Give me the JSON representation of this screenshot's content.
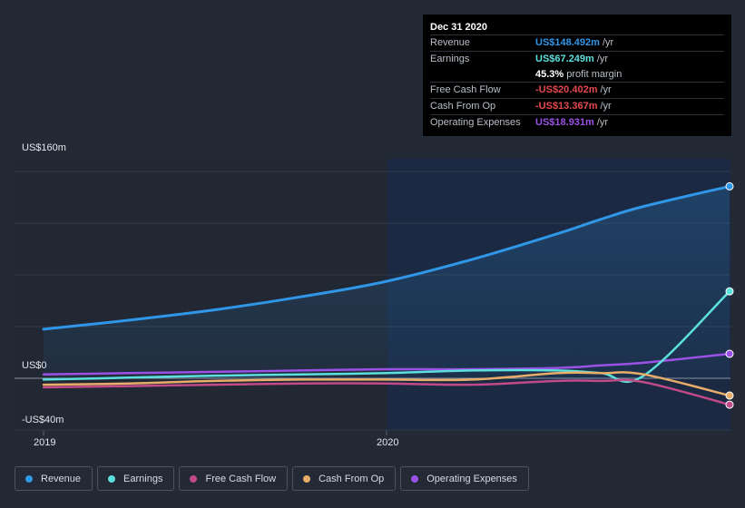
{
  "chart_data": {
    "type": "line",
    "x": [
      2019.0,
      2019.25,
      2019.5,
      2019.75,
      2020.0,
      2020.25,
      2020.5,
      2020.625,
      2020.75,
      2021.0
    ],
    "series": [
      {
        "name": "Revenue",
        "color": "#2f96e8",
        "values": [
          38,
          45,
          53,
          63,
          75,
          92,
          112,
          123,
          133,
          148.492
        ]
      },
      {
        "name": "Earnings",
        "color": "#5ce0dd",
        "values": [
          -1,
          0.5,
          2,
          3,
          4,
          6,
          6,
          4,
          2,
          67.249
        ]
      },
      {
        "name": "Free Cash Flow",
        "color": "#c24a89",
        "values": [
          -7,
          -6,
          -5,
          -4,
          -4,
          -5,
          -2,
          -2,
          -3,
          -20.402
        ]
      },
      {
        "name": "Cash From Op",
        "color": "#e9ad6a",
        "values": [
          -5,
          -4,
          -2,
          -1,
          -1,
          -1,
          4,
          4,
          3,
          -13.367
        ]
      },
      {
        "name": "Operating Expenses",
        "color": "#9b51e6",
        "values": [
          3,
          4,
          5,
          6,
          7,
          7,
          8,
          10,
          12,
          18.931
        ]
      }
    ],
    "y_axis": {
      "ylim": [
        -40,
        160
      ],
      "top_label": "US$160m",
      "zero_label": "US$0",
      "bottom_label": "-US$40m"
    },
    "x_ticks": [
      "2019",
      "2020"
    ],
    "grid": true,
    "legend_position": "bottom-left"
  },
  "tooltip": {
    "date": "Dec 31 2020",
    "rows": [
      {
        "label": "Revenue",
        "value": "US$148.492m",
        "unit": "/yr",
        "color": "#2f96e8"
      },
      {
        "label": "Earnings",
        "value": "US$67.249m",
        "unit": "/yr",
        "color": "#5ce0dd"
      },
      {
        "label": "",
        "value": "45.3%",
        "unit": "profit margin",
        "color": "#ffffff"
      },
      {
        "label": "Free Cash Flow",
        "value": "-US$20.402m",
        "unit": "/yr",
        "color": "#e5484d"
      },
      {
        "label": "Cash From Op",
        "value": "-US$13.367m",
        "unit": "/yr",
        "color": "#e5484d"
      },
      {
        "label": "Operating Expenses",
        "value": "US$18.931m",
        "unit": "/yr",
        "color": "#9b51e6"
      }
    ]
  },
  "legend": [
    {
      "label": "Revenue",
      "color": "#2f96e8"
    },
    {
      "label": "Earnings",
      "color": "#5ce0dd"
    },
    {
      "label": "Free Cash Flow",
      "color": "#c24a89"
    },
    {
      "label": "Cash From Op",
      "color": "#e9ad6a"
    },
    {
      "label": "Operating Expenses",
      "color": "#9b51e6"
    }
  ]
}
